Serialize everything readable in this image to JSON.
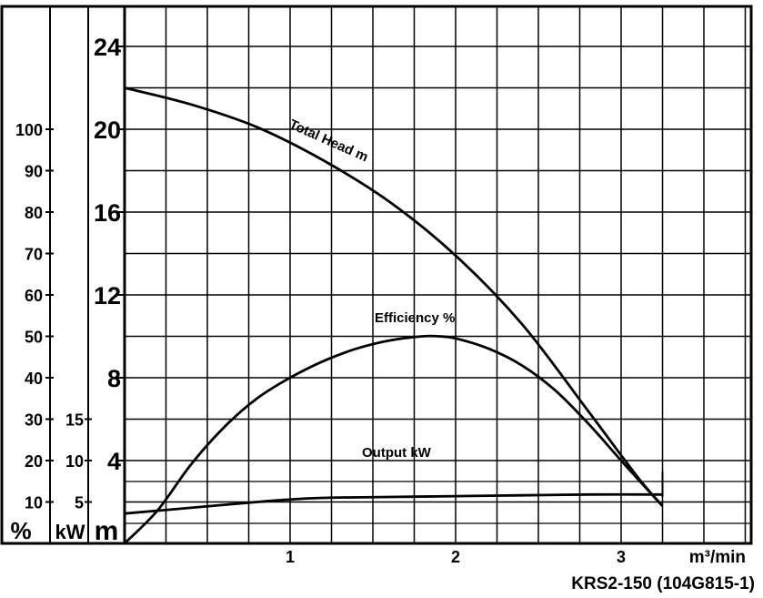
{
  "chart_data": {
    "type": "line",
    "title": "",
    "model": "KRS2-150 (104G815-1)",
    "xlabel": "m³/min",
    "x_ticks": [
      "1",
      "2",
      "3"
    ],
    "xlim": [
      0,
      3.75
    ],
    "axes": {
      "head": {
        "unit": "m",
        "ticks": [
          "4",
          "8",
          "12",
          "16",
          "20",
          "24"
        ],
        "ylim": [
          0,
          24
        ]
      },
      "power": {
        "unit": "kW",
        "ticks": [
          "5",
          "10",
          "15"
        ],
        "ylim": [
          0,
          15
        ]
      },
      "efficiency": {
        "unit": "%",
        "ticks": [
          "10",
          "20",
          "30",
          "40",
          "50",
          "60",
          "70",
          "80",
          "90",
          "100"
        ],
        "ylim": [
          0,
          100
        ]
      }
    },
    "grid": true,
    "series": [
      {
        "name": "Total Head m",
        "axis": "head",
        "x": [
          0,
          0.4,
          0.8,
          1.2,
          1.6,
          2.0,
          2.4,
          2.8,
          3.1,
          3.25
        ],
        "y": [
          22.0,
          21.2,
          20.1,
          18.5,
          16.5,
          13.9,
          10.6,
          6.4,
          3.2,
          1.8
        ]
      },
      {
        "name": "Efficiency %",
        "axis": "efficiency",
        "x": [
          0,
          0.2,
          0.4,
          0.6,
          0.8,
          1.0,
          1.2,
          1.4,
          1.6,
          1.8,
          1.9,
          2.0,
          2.2,
          2.4,
          2.6,
          2.8,
          3.0,
          3.25
        ],
        "y": [
          0,
          8,
          19,
          28,
          35,
          40,
          44,
          47,
          49,
          50,
          50,
          49.5,
          47,
          43,
          37,
          29,
          20,
          9
        ]
      },
      {
        "name": "Output kW",
        "axis": "power",
        "x": [
          0,
          0.4,
          0.8,
          1.0,
          1.2,
          1.6,
          2.0,
          2.4,
          2.8,
          3.25
        ],
        "y": [
          3.6,
          4.3,
          5.0,
          5.3,
          5.5,
          5.6,
          5.7,
          5.8,
          5.9,
          5.9
        ]
      }
    ]
  }
}
